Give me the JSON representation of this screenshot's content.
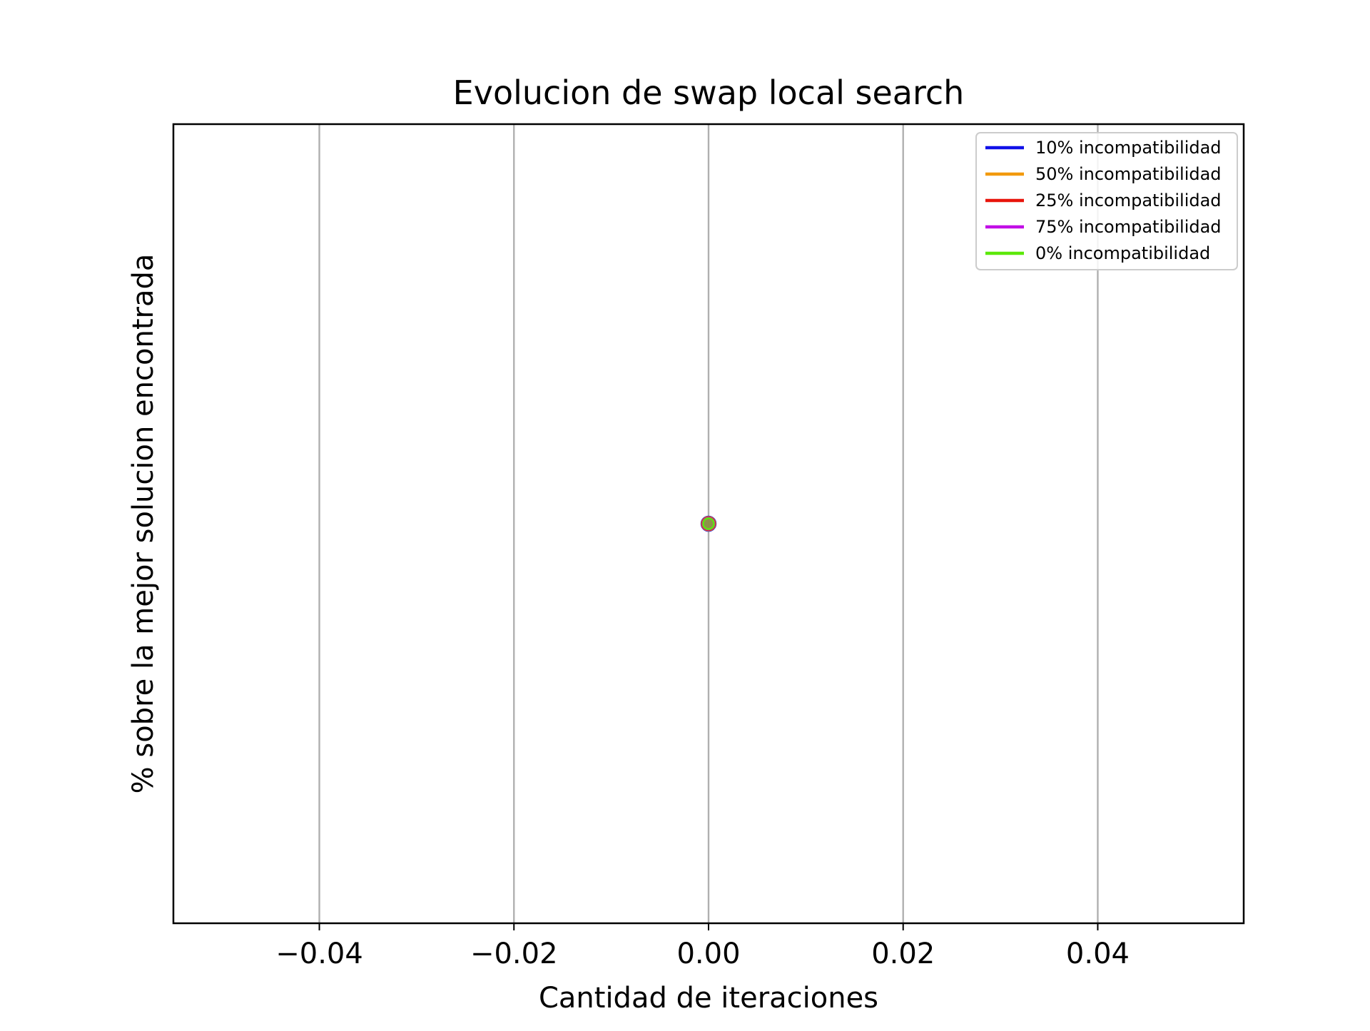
{
  "chart_data": {
    "type": "line",
    "title": "Evolucion de swap local search",
    "xlabel": "Cantidad de iteraciones",
    "ylabel": "% sobre la mejor solucion encontrada",
    "xlim": [
      -0.055,
      0.055
    ],
    "xticks": [
      -0.04,
      -0.02,
      0.0,
      0.02,
      0.04
    ],
    "xtick_labels": [
      "−0.04",
      "−0.02",
      "0.00",
      "0.02",
      "0.04"
    ],
    "yticks": [],
    "grid": "vertical",
    "legend_position": "top-right",
    "series": [
      {
        "name": "10% incompatibilidad",
        "color": "#1010e8",
        "x": [
          0
        ],
        "y": [
          0
        ]
      },
      {
        "name": "50% incompatibilidad",
        "color": "#f29a0d",
        "x": [
          0
        ],
        "y": [
          0
        ]
      },
      {
        "name": "25% incompatibilidad",
        "color": "#e8150c",
        "x": [
          0
        ],
        "y": [
          0
        ]
      },
      {
        "name": "75% incompatibilidad",
        "color": "#c10ee6",
        "x": [
          0
        ],
        "y": [
          0
        ]
      },
      {
        "name": "0% incompatibilidad",
        "color": "#5ce80a",
        "x": [
          0
        ],
        "y": [
          0
        ]
      }
    ]
  }
}
